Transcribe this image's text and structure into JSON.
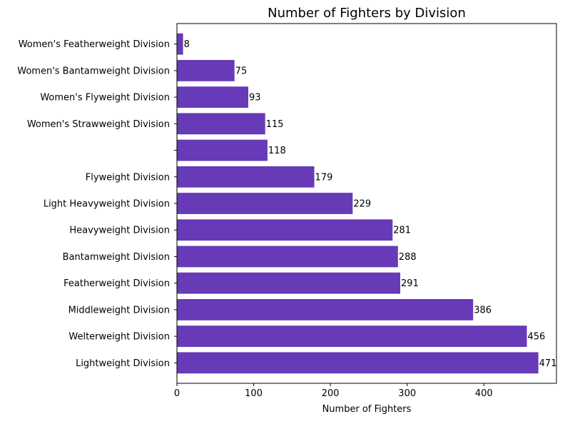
{
  "chart_data": {
    "type": "bar",
    "orientation": "horizontal",
    "title": "Number of Fighters by Division",
    "xlabel": "Number of Fighters",
    "ylabel": "",
    "xlim": [
      0,
      494.55
    ],
    "xticks": [
      0,
      100,
      200,
      300,
      400
    ],
    "grid": false,
    "categories": [
      "Lightweight Division",
      "Welterweight Division",
      "Middleweight Division",
      "Featherweight Division",
      "Bantamweight Division",
      "Heavyweight Division",
      "Light Heavyweight Division",
      "Flyweight Division",
      "",
      "Women's Strawweight Division",
      "Women's Flyweight Division",
      "Women's Bantamweight Division",
      "Women's Featherweight Division"
    ],
    "values": [
      471,
      456,
      386,
      291,
      288,
      281,
      229,
      179,
      118,
      115,
      93,
      75,
      8
    ],
    "bar_color": "#673ab7"
  }
}
